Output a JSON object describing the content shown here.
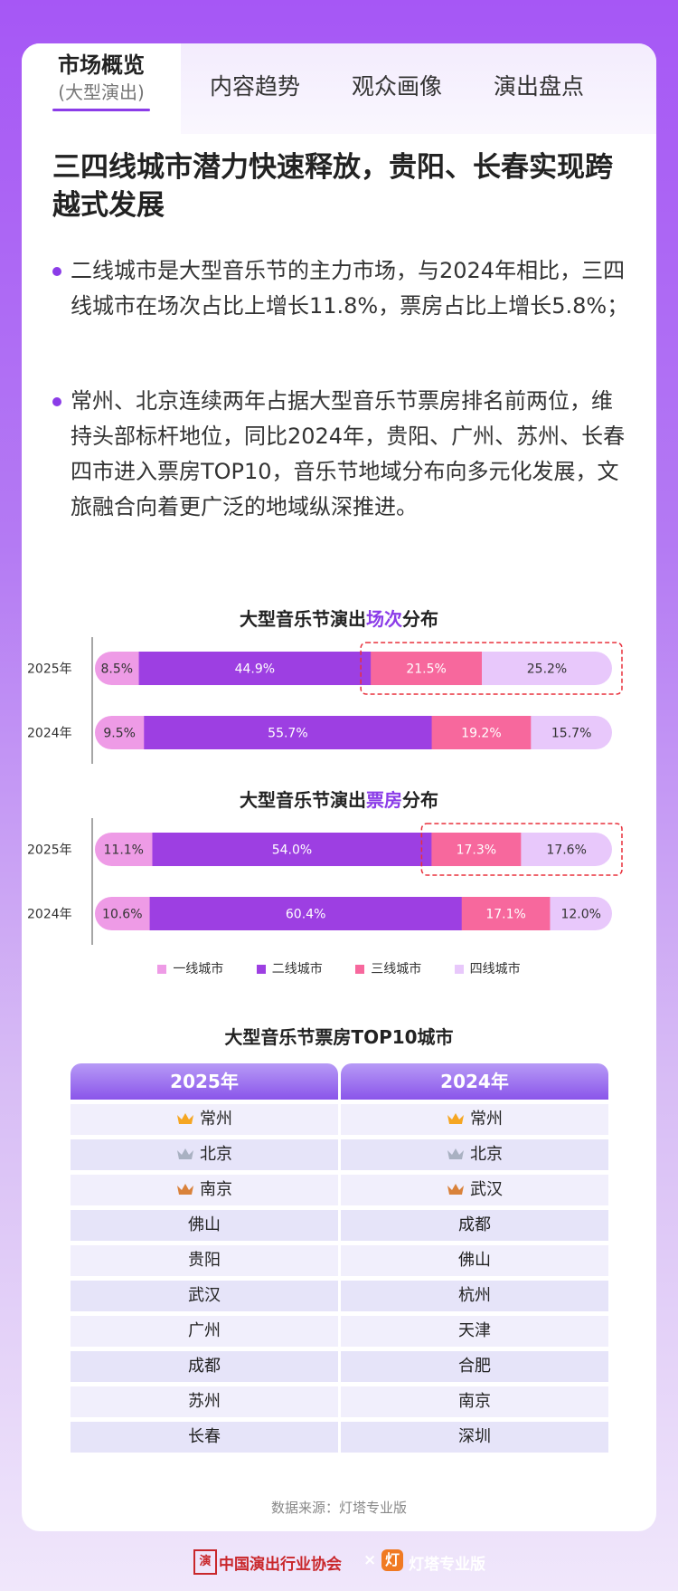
{
  "tabs": {
    "active": {
      "label": "市场概览",
      "sub": "(大型演出)"
    },
    "others": [
      "内容趋势",
      "观众画像",
      "演出盘点"
    ]
  },
  "headline": "三四线城市潜力快速释放，贵阳、长春实现跨越式发展",
  "bullets": [
    "二线城市是大型音乐节的主力市场，与2024年相比，三四线城市在场次占比上增长11.8%，票房占比上增长5.8%；",
    "常州、北京连续两年占据大型音乐节票房排名前两位，维持头部标杆地位，同比2024年，贵阳、广州、苏州、长春四市进入票房TOP10，音乐节地域分布向多元化发展，文旅融合向着更广泛的地域纵深推进。"
  ],
  "chart_data": [
    {
      "type": "bar",
      "orientation": "horizontal-stacked-100",
      "title": "大型音乐节演出场次分布",
      "title_parts": {
        "pre": "大型音乐节演出",
        "hl": "场次",
        "post": "分布"
      },
      "categories": [
        "2025年",
        "2024年"
      ],
      "series": [
        {
          "name": "一线城市",
          "values": [
            8.5,
            9.5
          ],
          "labels": [
            "8.5%",
            "9.5%"
          ]
        },
        {
          "name": "二线城市",
          "values": [
            44.9,
            55.7
          ],
          "labels": [
            "44.9%",
            "55.7%"
          ]
        },
        {
          "name": "三线城市",
          "values": [
            21.5,
            19.2
          ],
          "labels": [
            "21.5%",
            "19.2%"
          ]
        },
        {
          "name": "四线城市",
          "values": [
            25.2,
            15.7
          ],
          "labels": [
            "25.2%",
            "15.7%"
          ]
        }
      ],
      "highlight": {
        "category": "2025年",
        "series": [
          "三线城市",
          "四线城市"
        ]
      }
    },
    {
      "type": "bar",
      "orientation": "horizontal-stacked-100",
      "title": "大型音乐节演出票房分布",
      "title_parts": {
        "pre": "大型音乐节演出",
        "hl": "票房",
        "post": "分布"
      },
      "categories": [
        "2025年",
        "2024年"
      ],
      "series": [
        {
          "name": "一线城市",
          "values": [
            11.1,
            10.6
          ],
          "labels": [
            "11.1%",
            "10.6%"
          ]
        },
        {
          "name": "二线城市",
          "values": [
            54.0,
            60.4
          ],
          "labels": [
            "54.0%",
            "60.4%"
          ]
        },
        {
          "name": "三线城市",
          "values": [
            17.3,
            17.1
          ],
          "labels": [
            "17.3%",
            "17.1%"
          ]
        },
        {
          "name": "四线城市",
          "values": [
            17.6,
            12.0
          ],
          "labels": [
            "17.6%",
            "12.0%"
          ]
        }
      ],
      "highlight": {
        "category": "2025年",
        "series": [
          "三线城市",
          "四线城市"
        ]
      }
    }
  ],
  "legend": [
    "一线城市",
    "二线城市",
    "三线城市",
    "四线城市"
  ],
  "colors": {
    "tier1": "#ee9be6",
    "tier2": "#9d3fe2",
    "tier3": "#f7689d",
    "tier4": "#e8c8fb",
    "accent": "#8b3ce8",
    "highlight_border": "#e8303c",
    "crown_gold": "#f5a623",
    "crown_silver": "#a9b1c2",
    "crown_bronze": "#d9823b"
  },
  "top10": {
    "title": "大型音乐节票房TOP10城市",
    "columns": [
      {
        "header": "2025年",
        "cities": [
          "常州",
          "北京",
          "南京",
          "佛山",
          "贵阳",
          "武汉",
          "广州",
          "成都",
          "苏州",
          "长春"
        ]
      },
      {
        "header": "2024年",
        "cities": [
          "常州",
          "北京",
          "武汉",
          "成都",
          "佛山",
          "杭州",
          "天津",
          "合肥",
          "南京",
          "深圳"
        ]
      }
    ]
  },
  "source": "数据来源：灯塔专业版",
  "footer": {
    "seal": "演",
    "association": "中国演出行业协会",
    "times": "×",
    "logo_glyph": "灯",
    "brand": "灯塔专业版"
  }
}
